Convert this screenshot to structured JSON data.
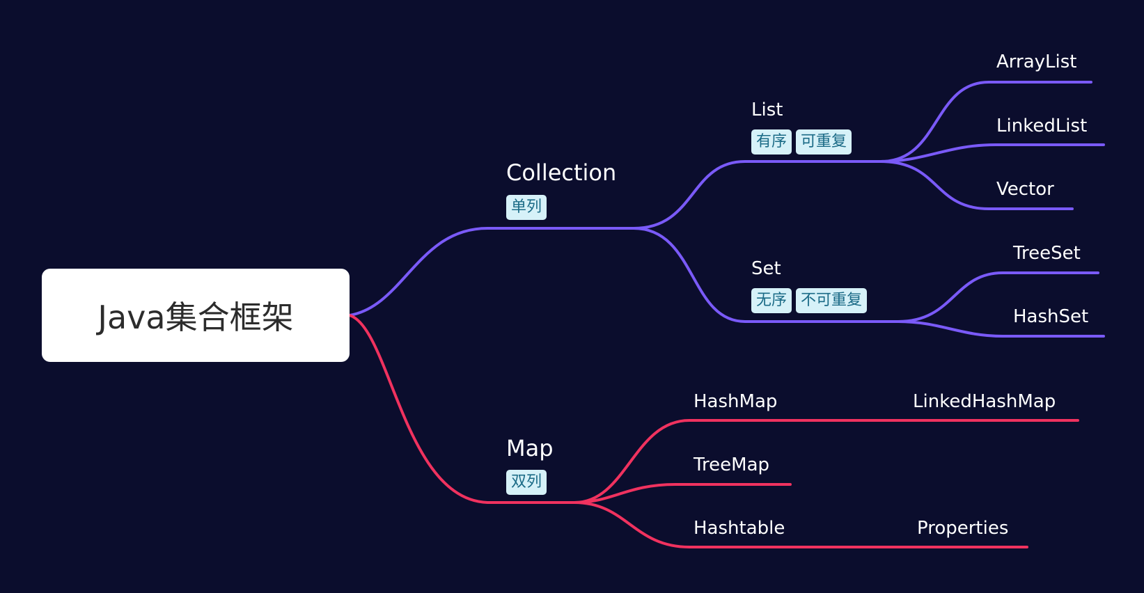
{
  "root": {
    "label": "Java集合框架"
  },
  "collection": {
    "label": "Collection",
    "tags": [
      "单列"
    ],
    "list": {
      "label": "List",
      "tags": [
        "有序",
        "可重复"
      ],
      "children": [
        "ArrayList",
        "LinkedList",
        "Vector"
      ]
    },
    "set": {
      "label": "Set",
      "tags": [
        "无序",
        "不可重复"
      ],
      "children": [
        "TreeSet",
        "HashSet"
      ]
    }
  },
  "map": {
    "label": "Map",
    "tags": [
      "双列"
    ],
    "hashmap": {
      "label": "HashMap",
      "child": "LinkedHashMap"
    },
    "treemap": {
      "label": "TreeMap"
    },
    "hashtable": {
      "label": "Hashtable",
      "child": "Properties"
    }
  },
  "colors": {
    "background": "#0b0d2d",
    "collection_branch": "#7a5af8",
    "map_branch": "#f0325f",
    "tag_background": "#d6f1f8",
    "tag_text": "#1a6a86"
  }
}
